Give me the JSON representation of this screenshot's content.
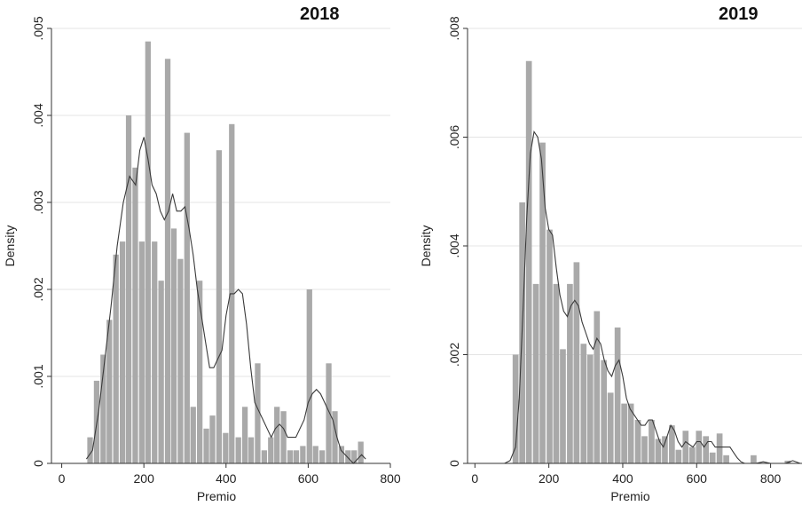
{
  "chart_data": [
    {
      "type": "bar",
      "title": "2018",
      "xlabel": "Premio",
      "ylabel": "Density",
      "xlim": [
        -25,
        800
      ],
      "ylim": [
        0,
        0.005
      ],
      "xticks": [
        0,
        200,
        400,
        600,
        800
      ],
      "xtick_labels": [
        "0",
        "200",
        "400",
        "600",
        "800"
      ],
      "yticks": [
        0,
        0.001,
        0.002,
        0.003,
        0.004,
        0.005
      ],
      "ytick_labels": [
        "0",
        ".001",
        ".002",
        ".003",
        ".004",
        ".005"
      ],
      "grid": true,
      "bin_width": 15.7,
      "bins": [
        {
          "x": 69,
          "y": 0.0003
        },
        {
          "x": 85,
          "y": 0.00095
        },
        {
          "x": 101,
          "y": 0.00125
        },
        {
          "x": 116,
          "y": 0.00165
        },
        {
          "x": 132,
          "y": 0.0024
        },
        {
          "x": 148,
          "y": 0.00255
        },
        {
          "x": 163,
          "y": 0.004
        },
        {
          "x": 179,
          "y": 0.0034
        },
        {
          "x": 195,
          "y": 0.00255
        },
        {
          "x": 210,
          "y": 0.00485
        },
        {
          "x": 226,
          "y": 0.00255
        },
        {
          "x": 242,
          "y": 0.0021
        },
        {
          "x": 258,
          "y": 0.00465
        },
        {
          "x": 273,
          "y": 0.0027
        },
        {
          "x": 289,
          "y": 0.00235
        },
        {
          "x": 305,
          "y": 0.0038
        },
        {
          "x": 320,
          "y": 0.00065
        },
        {
          "x": 336,
          "y": 0.0021
        },
        {
          "x": 352,
          "y": 0.0004
        },
        {
          "x": 367,
          "y": 0.00055
        },
        {
          "x": 383,
          "y": 0.0036
        },
        {
          "x": 399,
          "y": 0.00035
        },
        {
          "x": 414,
          "y": 0.0039
        },
        {
          "x": 430,
          "y": 0.0003
        },
        {
          "x": 446,
          "y": 0.00065
        },
        {
          "x": 461,
          "y": 0.0003
        },
        {
          "x": 477,
          "y": 0.00115
        },
        {
          "x": 493,
          "y": 0.00015
        },
        {
          "x": 509,
          "y": 0.0003
        },
        {
          "x": 524,
          "y": 0.00065
        },
        {
          "x": 540,
          "y": 0.0006
        },
        {
          "x": 556,
          "y": 0.00015
        },
        {
          "x": 571,
          "y": 0.00015
        },
        {
          "x": 587,
          "y": 0.0002
        },
        {
          "x": 603,
          "y": 0.002
        },
        {
          "x": 618,
          "y": 0.0002
        },
        {
          "x": 634,
          "y": 0.00015
        },
        {
          "x": 650,
          "y": 0.00115
        },
        {
          "x": 665,
          "y": 0.0006
        },
        {
          "x": 681,
          "y": 0.0002
        },
        {
          "x": 697,
          "y": 0.00015
        },
        {
          "x": 712,
          "y": 0.00015
        },
        {
          "x": 728,
          "y": 0.00025
        }
      ],
      "kde": [
        [
          60,
          5e-05
        ],
        [
          75,
          0.00015
        ],
        [
          90,
          0.0006
        ],
        [
          105,
          0.0012
        ],
        [
          120,
          0.0018
        ],
        [
          135,
          0.0025
        ],
        [
          150,
          0.003
        ],
        [
          165,
          0.0033
        ],
        [
          180,
          0.0032
        ],
        [
          190,
          0.0036
        ],
        [
          200,
          0.00375
        ],
        [
          210,
          0.0035
        ],
        [
          220,
          0.0032
        ],
        [
          230,
          0.0031
        ],
        [
          240,
          0.0029
        ],
        [
          250,
          0.0028
        ],
        [
          260,
          0.0029
        ],
        [
          270,
          0.0031
        ],
        [
          280,
          0.0029
        ],
        [
          290,
          0.0029
        ],
        [
          300,
          0.00295
        ],
        [
          310,
          0.0027
        ],
        [
          320,
          0.0024
        ],
        [
          330,
          0.002
        ],
        [
          340,
          0.0017
        ],
        [
          350,
          0.0014
        ],
        [
          360,
          0.0011
        ],
        [
          370,
          0.0011
        ],
        [
          380,
          0.0012
        ],
        [
          390,
          0.0013
        ],
        [
          400,
          0.0017
        ],
        [
          410,
          0.00195
        ],
        [
          420,
          0.00195
        ],
        [
          430,
          0.002
        ],
        [
          440,
          0.00195
        ],
        [
          450,
          0.0016
        ],
        [
          460,
          0.0011
        ],
        [
          470,
          0.0007
        ],
        [
          480,
          0.0006
        ],
        [
          490,
          0.0005
        ],
        [
          500,
          0.0004
        ],
        [
          510,
          0.0003
        ],
        [
          520,
          0.0004
        ],
        [
          530,
          0.00045
        ],
        [
          540,
          0.0004
        ],
        [
          550,
          0.0003
        ],
        [
          560,
          0.0003
        ],
        [
          570,
          0.0003
        ],
        [
          580,
          0.0004
        ],
        [
          590,
          0.0005
        ],
        [
          600,
          0.0007
        ],
        [
          610,
          0.0008
        ],
        [
          620,
          0.00085
        ],
        [
          630,
          0.0008
        ],
        [
          640,
          0.0007
        ],
        [
          650,
          0.0006
        ],
        [
          660,
          0.0005
        ],
        [
          670,
          0.0003
        ],
        [
          680,
          0.00015
        ],
        [
          690,
          0.0001
        ],
        [
          700,
          5e-05
        ],
        [
          710,
          0.0
        ],
        [
          720,
          5e-05
        ],
        [
          730,
          0.0001
        ],
        [
          740,
          5e-05
        ]
      ]
    },
    {
      "type": "bar",
      "title": "2019",
      "xlabel": "Premio",
      "ylabel": "Density",
      "xlim": [
        -20,
        885
      ],
      "ylim": [
        0,
        0.008
      ],
      "xticks": [
        0,
        200,
        400,
        600,
        800
      ],
      "xtick_labels": [
        "0",
        "200",
        "400",
        "600",
        "800"
      ],
      "yticks": [
        0,
        0.002,
        0.004,
        0.006,
        0.008
      ],
      "ytick_labels": [
        "0",
        ".002",
        ".004",
        ".006",
        ".008"
      ],
      "grid": true,
      "bin_width": 18.4,
      "bins": [
        {
          "x": 110,
          "y": 0.002
        },
        {
          "x": 128,
          "y": 0.0048
        },
        {
          "x": 146,
          "y": 0.0074
        },
        {
          "x": 165,
          "y": 0.0033
        },
        {
          "x": 183,
          "y": 0.0059
        },
        {
          "x": 202,
          "y": 0.0043
        },
        {
          "x": 220,
          "y": 0.0033
        },
        {
          "x": 238,
          "y": 0.0021
        },
        {
          "x": 257,
          "y": 0.0033
        },
        {
          "x": 275,
          "y": 0.0037
        },
        {
          "x": 294,
          "y": 0.0022
        },
        {
          "x": 312,
          "y": 0.002
        },
        {
          "x": 330,
          "y": 0.0028
        },
        {
          "x": 349,
          "y": 0.0019
        },
        {
          "x": 367,
          "y": 0.0013
        },
        {
          "x": 386,
          "y": 0.0025
        },
        {
          "x": 404,
          "y": 0.0011
        },
        {
          "x": 422,
          "y": 0.0011
        },
        {
          "x": 441,
          "y": 0.0008
        },
        {
          "x": 459,
          "y": 0.0005
        },
        {
          "x": 478,
          "y": 0.0008
        },
        {
          "x": 496,
          "y": 0.00045
        },
        {
          "x": 514,
          "y": 0.0005
        },
        {
          "x": 533,
          "y": 0.0007
        },
        {
          "x": 551,
          "y": 0.00025
        },
        {
          "x": 570,
          "y": 0.0006
        },
        {
          "x": 588,
          "y": 0.0003
        },
        {
          "x": 606,
          "y": 0.0006
        },
        {
          "x": 625,
          "y": 0.0005
        },
        {
          "x": 643,
          "y": 0.0002
        },
        {
          "x": 662,
          "y": 0.00055
        },
        {
          "x": 680,
          "y": 0.00015
        },
        {
          "x": 698,
          "y": 0.0
        },
        {
          "x": 717,
          "y": 0.0
        },
        {
          "x": 735,
          "y": 0.0
        },
        {
          "x": 754,
          "y": 0.00015
        },
        {
          "x": 772,
          "y": 0.0
        },
        {
          "x": 790,
          "y": 0.0
        },
        {
          "x": 809,
          "y": 0.0
        },
        {
          "x": 827,
          "y": 0.0
        },
        {
          "x": 846,
          "y": 5e-05
        }
      ],
      "kde": [
        [
          80,
          0.0
        ],
        [
          95,
          5e-05
        ],
        [
          110,
          0.0003
        ],
        [
          120,
          0.0012
        ],
        [
          130,
          0.0028
        ],
        [
          140,
          0.0045
        ],
        [
          150,
          0.0057
        ],
        [
          160,
          0.0061
        ],
        [
          170,
          0.006
        ],
        [
          180,
          0.0056
        ],
        [
          190,
          0.0047
        ],
        [
          200,
          0.0043
        ],
        [
          210,
          0.0042
        ],
        [
          220,
          0.0036
        ],
        [
          230,
          0.0031
        ],
        [
          240,
          0.0028
        ],
        [
          250,
          0.0027
        ],
        [
          260,
          0.0029
        ],
        [
          270,
          0.003
        ],
        [
          280,
          0.0029
        ],
        [
          290,
          0.0026
        ],
        [
          300,
          0.0024
        ],
        [
          310,
          0.0022
        ],
        [
          320,
          0.0021
        ],
        [
          330,
          0.0023
        ],
        [
          340,
          0.0022
        ],
        [
          350,
          0.0019
        ],
        [
          360,
          0.0017
        ],
        [
          370,
          0.0016
        ],
        [
          380,
          0.0018
        ],
        [
          390,
          0.0019
        ],
        [
          400,
          0.0016
        ],
        [
          410,
          0.0012
        ],
        [
          420,
          0.001
        ],
        [
          430,
          0.0009
        ],
        [
          440,
          0.0008
        ],
        [
          450,
          0.0007
        ],
        [
          460,
          0.0007
        ],
        [
          470,
          0.0008
        ],
        [
          480,
          0.0008
        ],
        [
          490,
          0.0006
        ],
        [
          500,
          0.0004
        ],
        [
          510,
          0.0003
        ],
        [
          520,
          0.0005
        ],
        [
          530,
          0.0007
        ],
        [
          540,
          0.0006
        ],
        [
          550,
          0.0004
        ],
        [
          560,
          0.0003
        ],
        [
          570,
          0.0004
        ],
        [
          580,
          0.00035
        ],
        [
          590,
          0.0003
        ],
        [
          600,
          0.0004
        ],
        [
          610,
          0.0004
        ],
        [
          620,
          0.0003
        ],
        [
          630,
          0.0004
        ],
        [
          640,
          0.0004
        ],
        [
          650,
          0.0003
        ],
        [
          660,
          0.0003
        ],
        [
          670,
          0.0003
        ],
        [
          680,
          0.0003
        ],
        [
          690,
          0.0003
        ],
        [
          700,
          0.0002
        ],
        [
          710,
          0.0001
        ],
        [
          720,
          3e-05
        ],
        [
          730,
          0.0
        ],
        [
          760,
          0.0
        ],
        [
          780,
          3e-05
        ],
        [
          800,
          0.0
        ],
        [
          840,
          0.0
        ],
        [
          860,
          5e-05
        ],
        [
          880,
          0.0
        ]
      ]
    }
  ]
}
